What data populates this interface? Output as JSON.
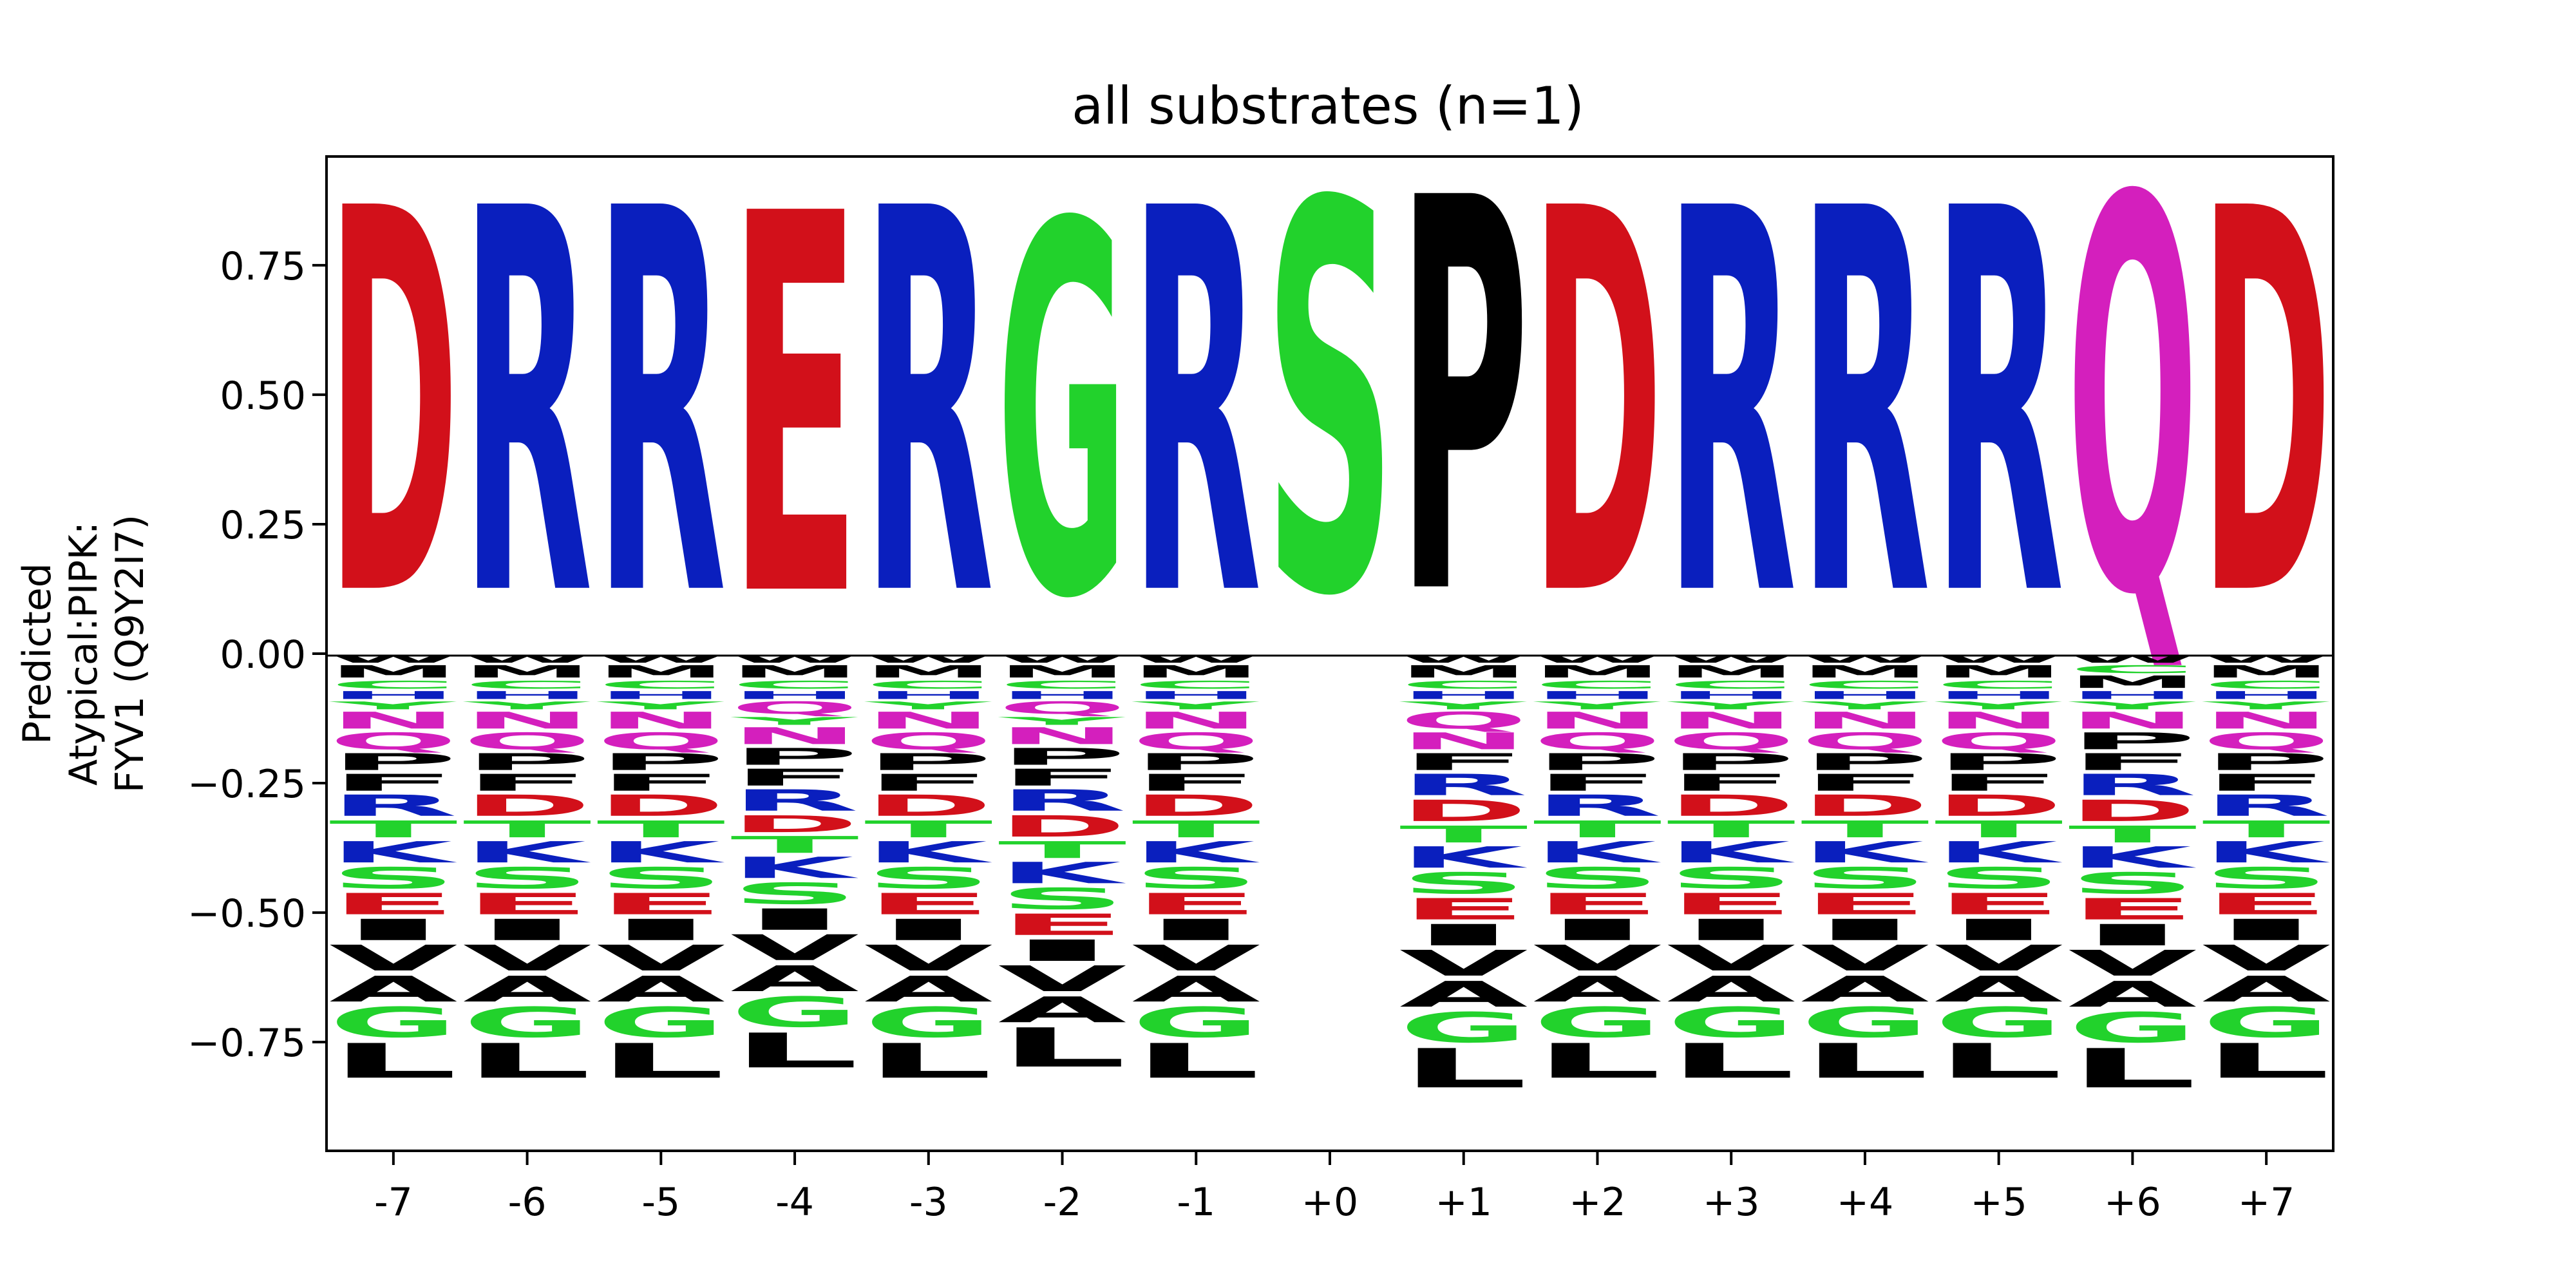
{
  "colors": {
    "acidic": "#d2101a",
    "basic": "#0a1fbe",
    "polar": "#22d22c",
    "hydrophobic": "#000000",
    "amide": "#d41fbd"
  },
  "residue_colors": {
    "D": "#d2101a",
    "E": "#d2101a",
    "R": "#0a1fbe",
    "K": "#0a1fbe",
    "H": "#0a1fbe",
    "G": "#22d22c",
    "S": "#22d22c",
    "T": "#22d22c",
    "Y": "#22d22c",
    "C": "#22d22c",
    "Q": "#d41fbd",
    "N": "#d41fbd",
    "P": "#000000",
    "A": "#000000",
    "V": "#000000",
    "L": "#000000",
    "I": "#000000",
    "M": "#000000",
    "F": "#000000",
    "W": "#000000"
  },
  "chart_data": {
    "type": "sequence-logo",
    "title": "all substrates (n=1)",
    "ylabel": "Predicted\nAtypical:PIPK:\nFYV1 (Q9Y2I7)",
    "xlabel": "",
    "ylim": [
      -0.96,
      0.96
    ],
    "yticks": [
      0.75,
      0.5,
      0.25,
      0.0,
      -0.25,
      -0.5,
      -0.75
    ],
    "ytick_labels": [
      "0.75",
      "0.50",
      "0.25",
      "0.00",
      "−0.25",
      "−0.50",
      "−0.75"
    ],
    "categories": [
      "-7",
      "-6",
      "-5",
      "-4",
      "-3",
      "-2",
      "-1",
      "+0",
      "+1",
      "+2",
      "+3",
      "+4",
      "+5",
      "+6",
      "+7"
    ],
    "positions": [
      {
        "x": "-7",
        "positive": [
          {
            "aa": "D",
            "value": 0.86
          }
        ],
        "negative": [
          [
            "W",
            0.02
          ],
          [
            "M",
            0.03
          ],
          [
            "C",
            0.02
          ],
          [
            "H",
            0.02
          ],
          [
            "Y",
            0.02
          ],
          [
            "N",
            0.04
          ],
          [
            "Q",
            0.04
          ],
          [
            "P",
            0.04
          ],
          [
            "F",
            0.04
          ],
          [
            "R",
            0.05
          ],
          [
            "T",
            0.04
          ],
          [
            "K",
            0.05
          ],
          [
            "S",
            0.05
          ],
          [
            "E",
            0.05
          ],
          [
            "I",
            0.05
          ],
          [
            "V",
            0.06
          ],
          [
            "A",
            0.06
          ],
          [
            "G",
            0.07
          ],
          [
            "L",
            0.08
          ]
        ]
      },
      {
        "x": "-6",
        "positive": [
          {
            "aa": "R",
            "value": 0.86
          }
        ],
        "negative": [
          [
            "W",
            0.02
          ],
          [
            "M",
            0.03
          ],
          [
            "C",
            0.02
          ],
          [
            "H",
            0.02
          ],
          [
            "Y",
            0.02
          ],
          [
            "N",
            0.04
          ],
          [
            "Q",
            0.04
          ],
          [
            "P",
            0.04
          ],
          [
            "F",
            0.04
          ],
          [
            "D",
            0.05
          ],
          [
            "T",
            0.04
          ],
          [
            "K",
            0.05
          ],
          [
            "S",
            0.05
          ],
          [
            "E",
            0.05
          ],
          [
            "I",
            0.05
          ],
          [
            "V",
            0.06
          ],
          [
            "A",
            0.06
          ],
          [
            "G",
            0.07
          ],
          [
            "L",
            0.08
          ]
        ]
      },
      {
        "x": "-5",
        "positive": [
          {
            "aa": "R",
            "value": 0.86
          }
        ],
        "negative": [
          [
            "W",
            0.02
          ],
          [
            "M",
            0.03
          ],
          [
            "C",
            0.02
          ],
          [
            "H",
            0.02
          ],
          [
            "Y",
            0.02
          ],
          [
            "N",
            0.04
          ],
          [
            "Q",
            0.04
          ],
          [
            "P",
            0.04
          ],
          [
            "F",
            0.04
          ],
          [
            "D",
            0.05
          ],
          [
            "T",
            0.04
          ],
          [
            "K",
            0.05
          ],
          [
            "S",
            0.05
          ],
          [
            "E",
            0.05
          ],
          [
            "I",
            0.05
          ],
          [
            "V",
            0.06
          ],
          [
            "A",
            0.06
          ],
          [
            "G",
            0.07
          ],
          [
            "L",
            0.08
          ]
        ]
      },
      {
        "x": "-4",
        "positive": [
          {
            "aa": "E",
            "value": 0.85
          }
        ],
        "negative": [
          [
            "W",
            0.02
          ],
          [
            "M",
            0.03
          ],
          [
            "C",
            0.02
          ],
          [
            "H",
            0.02
          ],
          [
            "Q",
            0.03
          ],
          [
            "Y",
            0.02
          ],
          [
            "N",
            0.04
          ],
          [
            "P",
            0.04
          ],
          [
            "F",
            0.04
          ],
          [
            "R",
            0.05
          ],
          [
            "D",
            0.04
          ],
          [
            "T",
            0.04
          ],
          [
            "K",
            0.05
          ],
          [
            "S",
            0.05
          ],
          [
            "I",
            0.05
          ],
          [
            "V",
            0.06
          ],
          [
            "A",
            0.06
          ],
          [
            "G",
            0.07
          ],
          [
            "L",
            0.08
          ]
        ]
      },
      {
        "x": "-3",
        "positive": [
          {
            "aa": "R",
            "value": 0.86
          }
        ],
        "negative": [
          [
            "W",
            0.02
          ],
          [
            "M",
            0.03
          ],
          [
            "C",
            0.02
          ],
          [
            "H",
            0.02
          ],
          [
            "Y",
            0.02
          ],
          [
            "N",
            0.04
          ],
          [
            "Q",
            0.04
          ],
          [
            "P",
            0.04
          ],
          [
            "F",
            0.04
          ],
          [
            "D",
            0.05
          ],
          [
            "T",
            0.04
          ],
          [
            "K",
            0.05
          ],
          [
            "S",
            0.05
          ],
          [
            "E",
            0.05
          ],
          [
            "I",
            0.05
          ],
          [
            "V",
            0.06
          ],
          [
            "A",
            0.06
          ],
          [
            "G",
            0.07
          ],
          [
            "L",
            0.08
          ]
        ]
      },
      {
        "x": "-2",
        "positive": [
          {
            "aa": "G",
            "value": 0.83
          }
        ],
        "negative": [
          [
            "W",
            0.02
          ],
          [
            "M",
            0.03
          ],
          [
            "C",
            0.02
          ],
          [
            "H",
            0.02
          ],
          [
            "Q",
            0.03
          ],
          [
            "Y",
            0.02
          ],
          [
            "N",
            0.04
          ],
          [
            "P",
            0.04
          ],
          [
            "F",
            0.04
          ],
          [
            "R",
            0.05
          ],
          [
            "D",
            0.05
          ],
          [
            "T",
            0.04
          ],
          [
            "K",
            0.05
          ],
          [
            "S",
            0.05
          ],
          [
            "E",
            0.05
          ],
          [
            "I",
            0.05
          ],
          [
            "V",
            0.06
          ],
          [
            "A",
            0.06
          ],
          [
            "L",
            0.09
          ]
        ]
      },
      {
        "x": "-1",
        "positive": [
          {
            "aa": "R",
            "value": 0.86
          }
        ],
        "negative": [
          [
            "W",
            0.02
          ],
          [
            "M",
            0.03
          ],
          [
            "C",
            0.02
          ],
          [
            "H",
            0.02
          ],
          [
            "Y",
            0.02
          ],
          [
            "N",
            0.04
          ],
          [
            "Q",
            0.04
          ],
          [
            "P",
            0.04
          ],
          [
            "F",
            0.04
          ],
          [
            "D",
            0.05
          ],
          [
            "T",
            0.04
          ],
          [
            "K",
            0.05
          ],
          [
            "S",
            0.05
          ],
          [
            "E",
            0.05
          ],
          [
            "I",
            0.05
          ],
          [
            "V",
            0.06
          ],
          [
            "A",
            0.06
          ],
          [
            "G",
            0.07
          ],
          [
            "L",
            0.08
          ]
        ]
      },
      {
        "x": "+0",
        "positive": [
          {
            "aa": "S",
            "value": 0.87
          }
        ],
        "negative": []
      },
      {
        "x": "+1",
        "positive": [
          {
            "aa": "P",
            "value": 0.88
          }
        ],
        "negative": [
          [
            "W",
            0.02
          ],
          [
            "M",
            0.03
          ],
          [
            "C",
            0.02
          ],
          [
            "H",
            0.02
          ],
          [
            "Y",
            0.02
          ],
          [
            "Q",
            0.04
          ],
          [
            "N",
            0.04
          ],
          [
            "F",
            0.04
          ],
          [
            "R",
            0.05
          ],
          [
            "D",
            0.05
          ],
          [
            "T",
            0.04
          ],
          [
            "K",
            0.05
          ],
          [
            "S",
            0.05
          ],
          [
            "E",
            0.05
          ],
          [
            "I",
            0.05
          ],
          [
            "V",
            0.06
          ],
          [
            "A",
            0.06
          ],
          [
            "G",
            0.07
          ],
          [
            "L",
            0.09
          ]
        ]
      },
      {
        "x": "+2",
        "positive": [
          {
            "aa": "D",
            "value": 0.86
          }
        ],
        "negative": [
          [
            "W",
            0.02
          ],
          [
            "M",
            0.03
          ],
          [
            "C",
            0.02
          ],
          [
            "H",
            0.02
          ],
          [
            "Y",
            0.02
          ],
          [
            "N",
            0.04
          ],
          [
            "Q",
            0.04
          ],
          [
            "P",
            0.04
          ],
          [
            "F",
            0.04
          ],
          [
            "R",
            0.05
          ],
          [
            "T",
            0.04
          ],
          [
            "K",
            0.05
          ],
          [
            "S",
            0.05
          ],
          [
            "E",
            0.05
          ],
          [
            "I",
            0.05
          ],
          [
            "V",
            0.06
          ],
          [
            "A",
            0.06
          ],
          [
            "G",
            0.07
          ],
          [
            "L",
            0.08
          ]
        ]
      },
      {
        "x": "+3",
        "positive": [
          {
            "aa": "R",
            "value": 0.86
          }
        ],
        "negative": [
          [
            "W",
            0.02
          ],
          [
            "M",
            0.03
          ],
          [
            "C",
            0.02
          ],
          [
            "H",
            0.02
          ],
          [
            "Y",
            0.02
          ],
          [
            "N",
            0.04
          ],
          [
            "Q",
            0.04
          ],
          [
            "P",
            0.04
          ],
          [
            "F",
            0.04
          ],
          [
            "D",
            0.05
          ],
          [
            "T",
            0.04
          ],
          [
            "K",
            0.05
          ],
          [
            "S",
            0.05
          ],
          [
            "E",
            0.05
          ],
          [
            "I",
            0.05
          ],
          [
            "V",
            0.06
          ],
          [
            "A",
            0.06
          ],
          [
            "G",
            0.07
          ],
          [
            "L",
            0.08
          ]
        ]
      },
      {
        "x": "+4",
        "positive": [
          {
            "aa": "R",
            "value": 0.86
          }
        ],
        "negative": [
          [
            "W",
            0.02
          ],
          [
            "M",
            0.03
          ],
          [
            "C",
            0.02
          ],
          [
            "H",
            0.02
          ],
          [
            "Y",
            0.02
          ],
          [
            "N",
            0.04
          ],
          [
            "Q",
            0.04
          ],
          [
            "P",
            0.04
          ],
          [
            "F",
            0.04
          ],
          [
            "D",
            0.05
          ],
          [
            "T",
            0.04
          ],
          [
            "K",
            0.05
          ],
          [
            "S",
            0.05
          ],
          [
            "E",
            0.05
          ],
          [
            "I",
            0.05
          ],
          [
            "V",
            0.06
          ],
          [
            "A",
            0.06
          ],
          [
            "G",
            0.07
          ],
          [
            "L",
            0.08
          ]
        ]
      },
      {
        "x": "+5",
        "positive": [
          {
            "aa": "R",
            "value": 0.86
          }
        ],
        "negative": [
          [
            "W",
            0.02
          ],
          [
            "M",
            0.03
          ],
          [
            "C",
            0.02
          ],
          [
            "H",
            0.02
          ],
          [
            "Y",
            0.02
          ],
          [
            "N",
            0.04
          ],
          [
            "Q",
            0.04
          ],
          [
            "P",
            0.04
          ],
          [
            "F",
            0.04
          ],
          [
            "D",
            0.05
          ],
          [
            "T",
            0.04
          ],
          [
            "K",
            0.05
          ],
          [
            "S",
            0.05
          ],
          [
            "E",
            0.05
          ],
          [
            "I",
            0.05
          ],
          [
            "V",
            0.06
          ],
          [
            "A",
            0.06
          ],
          [
            "G",
            0.07
          ],
          [
            "L",
            0.08
          ]
        ]
      },
      {
        "x": "+6",
        "positive": [
          {
            "aa": "Q",
            "value": 0.88
          }
        ],
        "negative": [
          [
            "W",
            0.02
          ],
          [
            "C",
            0.02
          ],
          [
            "M",
            0.03
          ],
          [
            "H",
            0.02
          ],
          [
            "Y",
            0.02
          ],
          [
            "N",
            0.04
          ],
          [
            "P",
            0.04
          ],
          [
            "F",
            0.04
          ],
          [
            "R",
            0.05
          ],
          [
            "D",
            0.05
          ],
          [
            "T",
            0.04
          ],
          [
            "K",
            0.05
          ],
          [
            "S",
            0.05
          ],
          [
            "E",
            0.05
          ],
          [
            "I",
            0.05
          ],
          [
            "V",
            0.06
          ],
          [
            "A",
            0.06
          ],
          [
            "G",
            0.07
          ],
          [
            "L",
            0.09
          ]
        ]
      },
      {
        "x": "+7",
        "positive": [
          {
            "aa": "D",
            "value": 0.86
          }
        ],
        "negative": [
          [
            "W",
            0.02
          ],
          [
            "M",
            0.03
          ],
          [
            "C",
            0.02
          ],
          [
            "H",
            0.02
          ],
          [
            "Y",
            0.02
          ],
          [
            "N",
            0.04
          ],
          [
            "Q",
            0.04
          ],
          [
            "P",
            0.04
          ],
          [
            "F",
            0.04
          ],
          [
            "R",
            0.05
          ],
          [
            "T",
            0.04
          ],
          [
            "K",
            0.05
          ],
          [
            "S",
            0.05
          ],
          [
            "E",
            0.05
          ],
          [
            "I",
            0.05
          ],
          [
            "V",
            0.06
          ],
          [
            "A",
            0.06
          ],
          [
            "G",
            0.07
          ],
          [
            "L",
            0.08
          ]
        ]
      }
    ]
  }
}
